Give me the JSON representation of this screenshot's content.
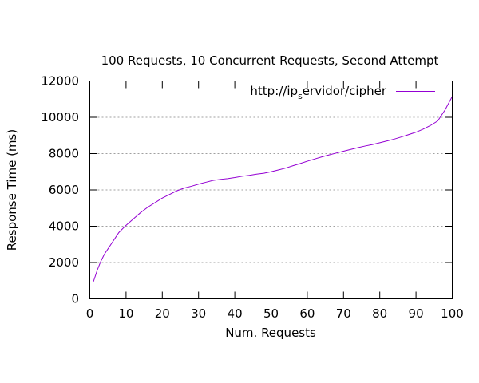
{
  "chart_data": {
    "type": "line",
    "title": "100 Requests, 10 Concurrent Requests, Second Attempt",
    "xlabel": "Num. Requests",
    "ylabel": "Response Time (ms)",
    "xlim": [
      0,
      100
    ],
    "ylim": [
      0,
      12000
    ],
    "xticks": [
      0,
      10,
      20,
      30,
      40,
      50,
      60,
      70,
      80,
      90,
      100
    ],
    "yticks": [
      0,
      2000,
      4000,
      6000,
      8000,
      10000,
      12000
    ],
    "grid": "horizontal-dotted",
    "legend_position": "top-right",
    "legend": {
      "main": "http://ip",
      "subscript": "s",
      "rest": "ervidor/cipher"
    },
    "series": [
      {
        "name": "http://ipservidor/cipher",
        "color": "#9400d3",
        "x": [
          1,
          2,
          3,
          4,
          5,
          6,
          7,
          8,
          9,
          10,
          12,
          14,
          16,
          18,
          20,
          22,
          24,
          26,
          28,
          30,
          32,
          34,
          36,
          38,
          40,
          42,
          44,
          46,
          48,
          50,
          52,
          54,
          56,
          58,
          60,
          62,
          64,
          66,
          68,
          70,
          72,
          74,
          76,
          78,
          80,
          82,
          84,
          86,
          88,
          90,
          92,
          94,
          96,
          98,
          100
        ],
        "values": [
          950,
          1550,
          2050,
          2450,
          2750,
          3050,
          3350,
          3650,
          3850,
          4050,
          4400,
          4750,
          5050,
          5300,
          5550,
          5750,
          5950,
          6100,
          6200,
          6320,
          6420,
          6520,
          6580,
          6620,
          6680,
          6750,
          6800,
          6870,
          6920,
          7000,
          7100,
          7200,
          7330,
          7450,
          7580,
          7700,
          7820,
          7930,
          8030,
          8130,
          8230,
          8330,
          8420,
          8500,
          8600,
          8700,
          8800,
          8920,
          9050,
          9180,
          9350,
          9550,
          9800,
          10400,
          11150
        ]
      }
    ]
  }
}
